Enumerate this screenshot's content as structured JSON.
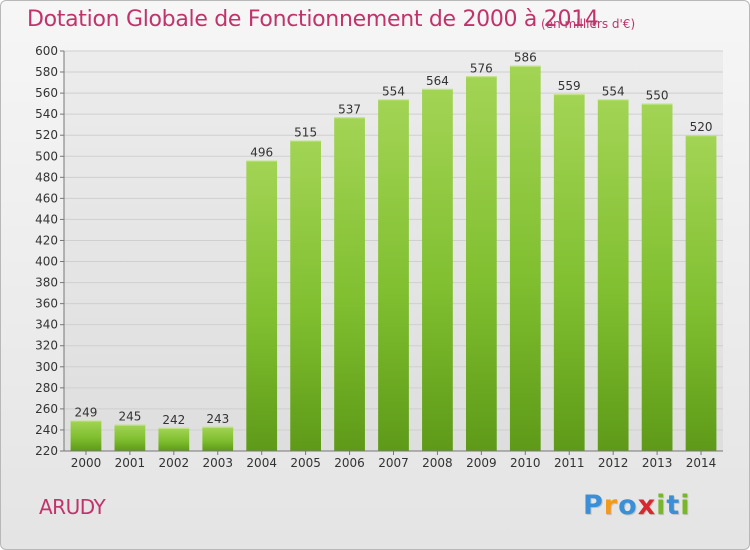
{
  "chart_data": {
    "type": "bar",
    "title": "Dotation Globale de Fonctionnement de 2000 à 2014",
    "subtitle": "(en milliers d'€)",
    "categories": [
      "2000",
      "2001",
      "2002",
      "2003",
      "2004",
      "2005",
      "2006",
      "2007",
      "2008",
      "2009",
      "2010",
      "2011",
      "2012",
      "2013",
      "2014"
    ],
    "values": [
      249,
      245,
      242,
      243,
      496,
      515,
      537,
      554,
      564,
      576,
      586,
      559,
      554,
      550,
      520
    ],
    "ylim": [
      220,
      600
    ],
    "ytick_step": 20,
    "xlabel": "",
    "ylabel": "",
    "grid": true,
    "bar_color": "#7fbf2a"
  },
  "footer": {
    "place": "ARUDY",
    "logo_letters": [
      {
        "char": "P",
        "color": "#3b8fd6"
      },
      {
        "char": "r",
        "color": "#f39a1e"
      },
      {
        "char": "o",
        "color": "#3b8fd6"
      },
      {
        "char": "x",
        "color": "#d8272e"
      },
      {
        "char": "i",
        "color": "#7ab52d"
      },
      {
        "char": "t",
        "color": "#3b8fd6"
      },
      {
        "char": "i",
        "color": "#7ab52d"
      }
    ]
  }
}
